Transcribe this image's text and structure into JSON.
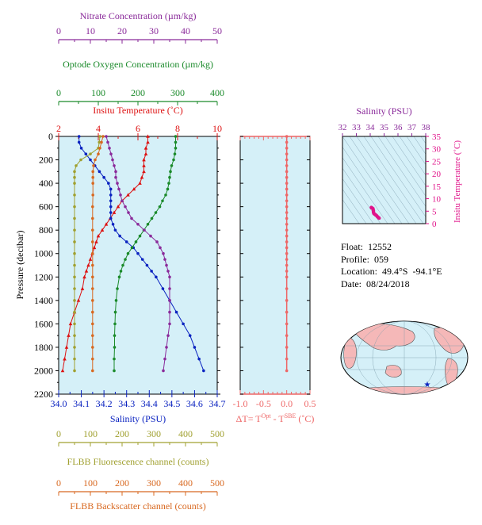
{
  "float_info": {
    "float": "Float:  12552",
    "profile": "Profile:  059",
    "location": "Location:  49.4°S  -94.1°E",
    "date": "Date:  08/24/2018"
  },
  "colors": {
    "temperature": "#dd1111",
    "salinity": "#0a22c0",
    "oxygen": "#1a8a2a",
    "nitrate": "#8a2a9a",
    "fluorescence": "#a0a030",
    "backscatter": "#d86820",
    "delta_t": "#ee6666",
    "ts_points": "#e0138a",
    "plot_bg": "#d5f0f8"
  },
  "chart_data": [
    {
      "type": "line",
      "panel": "main-profile",
      "ylabel": "Pressure (decibar)",
      "ylim": [
        2200,
        0
      ],
      "yticks": [
        "0",
        "200",
        "400",
        "600",
        "800",
        "1000",
        "1200",
        "1400",
        "1600",
        "1800",
        "2000",
        "2200"
      ],
      "axes": [
        {
          "position": "bottom",
          "title": "Salinity (PSU)",
          "range": [
            34.0,
            34.7
          ],
          "ticks": [
            "34.0",
            "34.1",
            "34.2",
            "34.3",
            "34.4",
            "34.5",
            "34.6",
            "34.7"
          ],
          "color": "#0a22c0"
        },
        {
          "position": "top",
          "title": "Insitu Temperature (˚C)",
          "range": [
            2,
            10
          ],
          "ticks": [
            "2",
            "4",
            "6",
            "8",
            "10"
          ],
          "color": "#dd1111"
        },
        {
          "position": "top2",
          "title": "Optode Oxygen Concentration (µm/kg)",
          "range": [
            0,
            400
          ],
          "ticks": [
            "0",
            "100",
            "200",
            "300",
            "400"
          ],
          "color": "#1a8a2a"
        },
        {
          "position": "top3",
          "title": "Nitrate Concentration (µm/kg)",
          "range": [
            0,
            50
          ],
          "ticks": [
            "0",
            "10",
            "20",
            "30",
            "40",
            "50"
          ],
          "color": "#8a2a9a"
        },
        {
          "position": "bottom2",
          "title": "FLBB Fluorescence channel (counts)",
          "range": [
            0,
            500
          ],
          "ticks": [
            "0",
            "100",
            "200",
            "300",
            "400",
            "500"
          ],
          "color": "#a0a030"
        },
        {
          "position": "bottom3",
          "title": "FLBB Backscatter channel (counts)",
          "range": [
            0,
            500
          ],
          "ticks": [
            "0",
            "100",
            "200",
            "300",
            "400",
            "500"
          ],
          "color": "#d86820"
        }
      ],
      "series": [
        {
          "key": "temperature",
          "axis": "top",
          "marker": "triangle",
          "points": [
            [
              6.5,
              0
            ],
            [
              6.5,
              50
            ],
            [
              6.4,
              100
            ],
            [
              6.4,
              150
            ],
            [
              6.3,
              200
            ],
            [
              6.3,
              250
            ],
            [
              6.3,
              300
            ],
            [
              6.2,
              350
            ],
            [
              6.1,
              400
            ],
            [
              5.8,
              450
            ],
            [
              5.5,
              500
            ],
            [
              5.2,
              550
            ],
            [
              5.0,
              600
            ],
            [
              4.8,
              650
            ],
            [
              4.6,
              700
            ],
            [
              4.4,
              750
            ],
            [
              4.2,
              800
            ],
            [
              4.0,
              850
            ],
            [
              3.9,
              900
            ],
            [
              3.8,
              950
            ],
            [
              3.7,
              1000
            ],
            [
              3.6,
              1050
            ],
            [
              3.5,
              1100
            ],
            [
              3.4,
              1150
            ],
            [
              3.3,
              1200
            ],
            [
              3.2,
              1300
            ],
            [
              3.0,
              1400
            ],
            [
              2.8,
              1500
            ],
            [
              2.6,
              1600
            ],
            [
              2.5,
              1700
            ],
            [
              2.4,
              1800
            ],
            [
              2.3,
              1900
            ],
            [
              2.2,
              2000
            ]
          ]
        },
        {
          "key": "salinity",
          "axis": "bottom",
          "marker": "circle",
          "points": [
            [
              34.09,
              0
            ],
            [
              34.09,
              50
            ],
            [
              34.1,
              100
            ],
            [
              34.12,
              150
            ],
            [
              34.14,
              200
            ],
            [
              34.16,
              250
            ],
            [
              34.18,
              300
            ],
            [
              34.2,
              350
            ],
            [
              34.22,
              400
            ],
            [
              34.23,
              450
            ],
            [
              34.23,
              500
            ],
            [
              34.23,
              550
            ],
            [
              34.23,
              600
            ],
            [
              34.23,
              650
            ],
            [
              34.23,
              700
            ],
            [
              34.24,
              750
            ],
            [
              34.25,
              800
            ],
            [
              34.27,
              850
            ],
            [
              34.3,
              900
            ],
            [
              34.33,
              950
            ],
            [
              34.35,
              1000
            ],
            [
              34.37,
              1050
            ],
            [
              34.39,
              1100
            ],
            [
              34.41,
              1150
            ],
            [
              34.43,
              1200
            ],
            [
              34.46,
              1300
            ],
            [
              34.49,
              1400
            ],
            [
              34.52,
              1500
            ],
            [
              34.55,
              1600
            ],
            [
              34.58,
              1700
            ],
            [
              34.6,
              1800
            ],
            [
              34.62,
              1900
            ],
            [
              34.64,
              2000
            ]
          ]
        },
        {
          "key": "oxygen",
          "axis": "top2",
          "marker": "circle",
          "points": [
            [
              295,
              0
            ],
            [
              295,
              50
            ],
            [
              295,
              100
            ],
            [
              293,
              150
            ],
            [
              290,
              200
            ],
            [
              285,
              250
            ],
            [
              282,
              300
            ],
            [
              280,
              350
            ],
            [
              278,
              400
            ],
            [
              275,
              450
            ],
            [
              270,
              500
            ],
            [
              262,
              550
            ],
            [
              255,
              600
            ],
            [
              245,
              650
            ],
            [
              235,
              700
            ],
            [
              225,
              750
            ],
            [
              215,
              800
            ],
            [
              205,
              850
            ],
            [
              195,
              900
            ],
            [
              185,
              950
            ],
            [
              175,
              1000
            ],
            [
              168,
              1050
            ],
            [
              162,
              1100
            ],
            [
              157,
              1150
            ],
            [
              153,
              1200
            ],
            [
              148,
              1300
            ],
            [
              145,
              1400
            ],
            [
              143,
              1500
            ],
            [
              142,
              1600
            ],
            [
              141,
              1700
            ],
            [
              141,
              1800
            ],
            [
              140,
              1900
            ],
            [
              140,
              2000
            ]
          ]
        },
        {
          "key": "nitrate",
          "axis": "top3",
          "marker": "circle",
          "points": [
            [
              15,
              0
            ],
            [
              15.5,
              50
            ],
            [
              16,
              100
            ],
            [
              16.5,
              150
            ],
            [
              17,
              200
            ],
            [
              17.5,
              250
            ],
            [
              18,
              300
            ],
            [
              18,
              350
            ],
            [
              18.5,
              400
            ],
            [
              19,
              450
            ],
            [
              19.5,
              500
            ],
            [
              20,
              550
            ],
            [
              21,
              600
            ],
            [
              22,
              650
            ],
            [
              23,
              700
            ],
            [
              25,
              750
            ],
            [
              27,
              800
            ],
            [
              29,
              850
            ],
            [
              31,
              900
            ],
            [
              32,
              950
            ],
            [
              33,
              1000
            ],
            [
              33.5,
              1050
            ],
            [
              34,
              1100
            ],
            [
              34.5,
              1150
            ],
            [
              35,
              1200
            ],
            [
              35,
              1300
            ],
            [
              35,
              1400
            ],
            [
              35,
              1500
            ],
            [
              35,
              1600
            ],
            [
              34.5,
              1700
            ],
            [
              34,
              1800
            ],
            [
              33.5,
              1900
            ],
            [
              33,
              2000
            ]
          ]
        },
        {
          "key": "fluorescence",
          "axis": "bottom2",
          "marker": "circle",
          "points": [
            [
              130,
              0
            ],
            [
              128,
              50
            ],
            [
              125,
              100
            ],
            [
              100,
              150
            ],
            [
              70,
              200
            ],
            [
              55,
              250
            ],
            [
              50,
              300
            ],
            [
              50,
              350
            ],
            [
              50,
              400
            ],
            [
              50,
              500
            ],
            [
              50,
              600
            ],
            [
              50,
              700
            ],
            [
              50,
              800
            ],
            [
              50,
              900
            ],
            [
              50,
              1000
            ],
            [
              50,
              1100
            ],
            [
              50,
              1200
            ],
            [
              50,
              1300
            ],
            [
              50,
              1400
            ],
            [
              50,
              1500
            ],
            [
              50,
              1600
            ],
            [
              50,
              1700
            ],
            [
              50,
              1800
            ],
            [
              50,
              1900
            ],
            [
              50,
              2000
            ]
          ]
        },
        {
          "key": "backscatter",
          "axis": "bottom3",
          "marker": "circle",
          "points": [
            [
              140,
              0
            ],
            [
              135,
              50
            ],
            [
              130,
              100
            ],
            [
              125,
              150
            ],
            [
              115,
              200
            ],
            [
              110,
              250
            ],
            [
              108,
              300
            ],
            [
              108,
              350
            ],
            [
              108,
              400
            ],
            [
              108,
              500
            ],
            [
              107,
              600
            ],
            [
              107,
              700
            ],
            [
              107,
              800
            ],
            [
              107,
              900
            ],
            [
              107,
              1000
            ],
            [
              107,
              1100
            ],
            [
              107,
              1200
            ],
            [
              107,
              1300
            ],
            [
              107,
              1400
            ],
            [
              107,
              1500
            ],
            [
              107,
              1600
            ],
            [
              107,
              1700
            ],
            [
              107,
              1800
            ],
            [
              107,
              1900
            ],
            [
              107,
              2000
            ]
          ]
        }
      ]
    },
    {
      "type": "line",
      "panel": "delta-t",
      "xlabel_parts": {
        "prefix": "ΔT= T",
        "sup1": "Opt",
        "mid": " - T",
        "sup2": "SBE",
        "suffix": " (˚C)"
      },
      "xlim": [
        -1.0,
        0.5
      ],
      "xticks": [
        "-1.0",
        "-0.5",
        "0.0",
        "0.5"
      ],
      "ylim": [
        2200,
        0
      ],
      "points": [
        [
          0,
          0
        ],
        [
          0,
          50
        ],
        [
          0,
          100
        ],
        [
          0,
          150
        ],
        [
          0,
          200
        ],
        [
          0,
          250
        ],
        [
          0,
          300
        ],
        [
          0,
          350
        ],
        [
          0,
          400
        ],
        [
          0,
          450
        ],
        [
          0,
          500
        ],
        [
          0,
          550
        ],
        [
          0,
          600
        ],
        [
          0,
          650
        ],
        [
          0,
          700
        ],
        [
          0,
          750
        ],
        [
          0,
          800
        ],
        [
          0,
          850
        ],
        [
          0,
          900
        ],
        [
          0,
          950
        ],
        [
          0,
          1000
        ],
        [
          0,
          1050
        ],
        [
          0,
          1100
        ],
        [
          0,
          1150
        ],
        [
          0,
          1200
        ],
        [
          0,
          1300
        ],
        [
          0,
          1400
        ],
        [
          0,
          1500
        ],
        [
          0,
          1600
        ],
        [
          0,
          1700
        ],
        [
          0,
          1800
        ],
        [
          0,
          1900
        ],
        [
          0,
          2000
        ]
      ]
    },
    {
      "type": "scatter",
      "panel": "ts-diagram",
      "title": "Salinity (PSU)",
      "xlim": [
        32,
        38
      ],
      "xticks": [
        "32",
        "33",
        "34",
        "35",
        "36",
        "37",
        "38"
      ],
      "ylabel": "Insitu Temperature (˚C)",
      "ylim": [
        0,
        35
      ],
      "yticks": [
        "0",
        "5",
        "10",
        "15",
        "20",
        "25",
        "30",
        "35"
      ],
      "points": [
        [
          34.08,
          6.5
        ],
        [
          34.09,
          6.4
        ],
        [
          34.12,
          6.3
        ],
        [
          34.16,
          6.2
        ],
        [
          34.2,
          6.0
        ],
        [
          34.23,
          5.3
        ],
        [
          34.23,
          4.8
        ],
        [
          34.24,
          4.4
        ],
        [
          34.27,
          4.0
        ],
        [
          34.33,
          3.8
        ],
        [
          34.37,
          3.6
        ],
        [
          34.41,
          3.4
        ],
        [
          34.46,
          3.2
        ],
        [
          34.52,
          2.8
        ],
        [
          34.58,
          2.5
        ],
        [
          34.62,
          2.3
        ],
        [
          34.64,
          2.2
        ]
      ]
    }
  ]
}
